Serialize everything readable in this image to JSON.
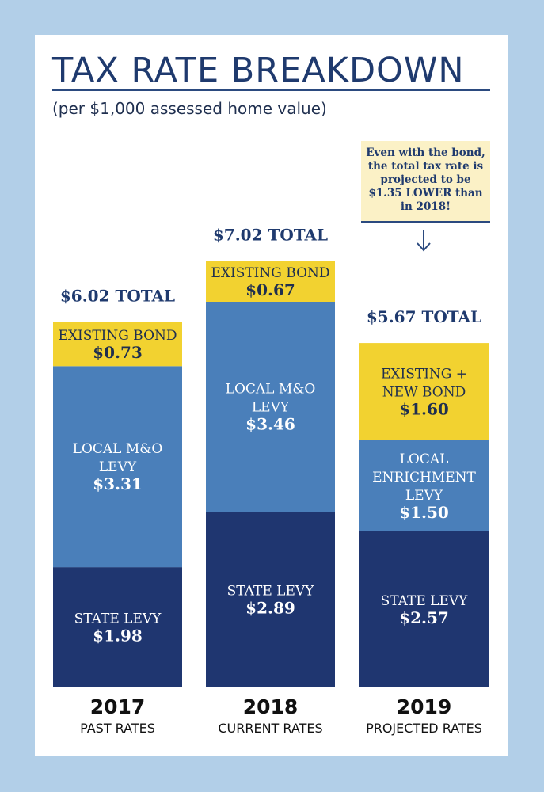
{
  "title": "TAX RATE BREAKDOWN",
  "subtitle": "(per $1,000 assessed home value)",
  "callout": "Even with the bond, the total tax rate is projected to be $1.35 LOWER than in 2018!",
  "colors": {
    "bond": "#f2d230",
    "local": "#4a7fba",
    "state": "#1f3670"
  },
  "chart_data": {
    "type": "bar",
    "stacked": true,
    "categories": [
      "2017",
      "2018",
      "2019"
    ],
    "category_sublabels": [
      "PAST RATES",
      "CURRENT RATES",
      "PROJECTED RATES"
    ],
    "totals": [
      "$6.02 TOTAL",
      "$7.02 TOTAL",
      "$5.67 TOTAL"
    ],
    "bars": [
      {
        "year": "2017",
        "segments": [
          {
            "kind": "state",
            "lines": [
              "STATE LEVY",
              "$1.98"
            ],
            "value": 1.98
          },
          {
            "kind": "local",
            "lines": [
              "LOCAL M&O",
              "LEVY",
              "$3.31"
            ],
            "value": 3.31
          },
          {
            "kind": "bond",
            "lines": [
              "EXISTING BOND",
              "$0.73"
            ],
            "value": 0.73
          }
        ]
      },
      {
        "year": "2018",
        "segments": [
          {
            "kind": "state",
            "lines": [
              "STATE LEVY",
              "$2.89"
            ],
            "value": 2.89
          },
          {
            "kind": "local",
            "lines": [
              "LOCAL M&O",
              "LEVY",
              "$3.46"
            ],
            "value": 3.46
          },
          {
            "kind": "bond",
            "lines": [
              "EXISTING BOND",
              "$0.67"
            ],
            "value": 0.67
          }
        ]
      },
      {
        "year": "2019",
        "segments": [
          {
            "kind": "state",
            "lines": [
              "STATE LEVY",
              "$2.57"
            ],
            "value": 2.57
          },
          {
            "kind": "local",
            "lines": [
              "LOCAL",
              "ENRICHMENT",
              "LEVY",
              "$1.50"
            ],
            "value": 1.5
          },
          {
            "kind": "bond",
            "lines": [
              "EXISTING +",
              "NEW BOND",
              "$1.60"
            ],
            "value": 1.6
          }
        ]
      }
    ]
  }
}
